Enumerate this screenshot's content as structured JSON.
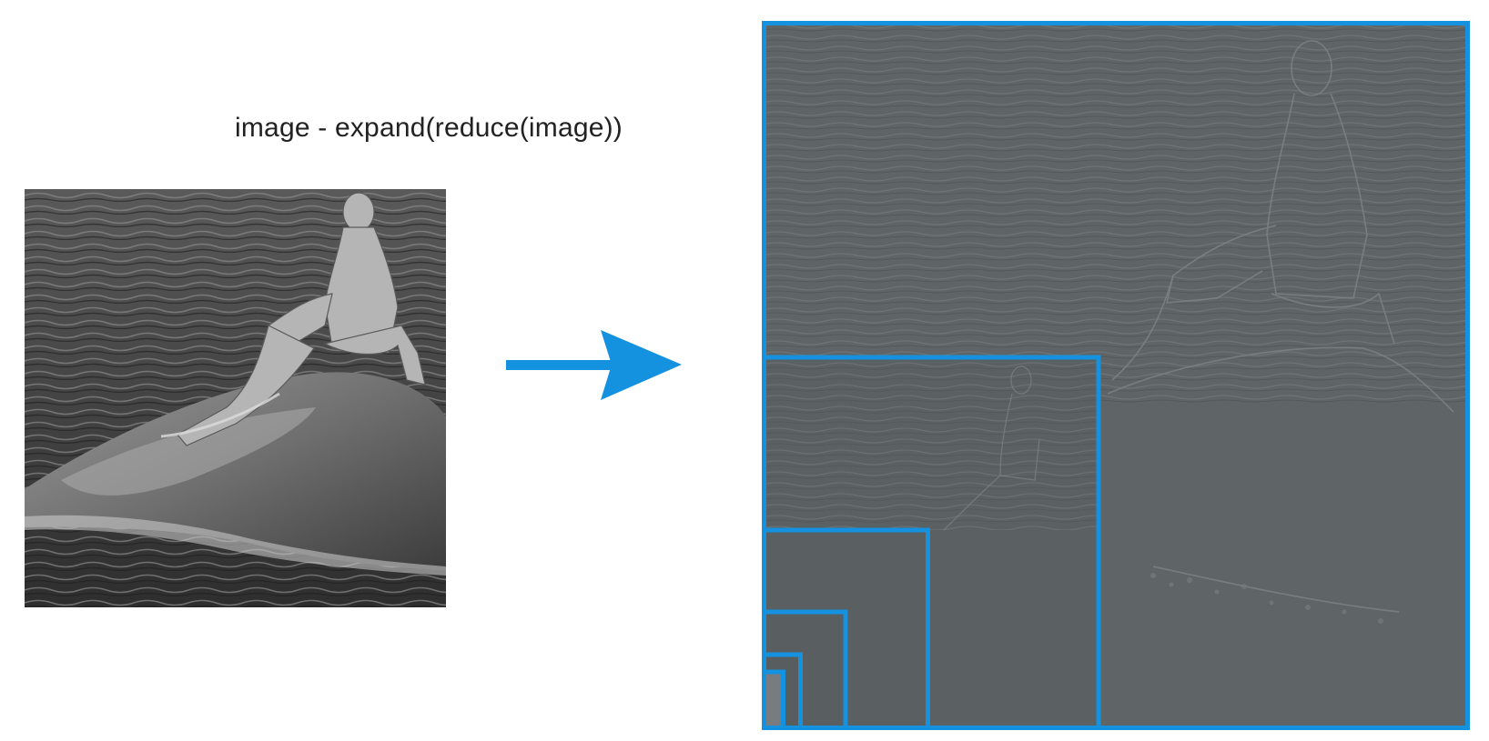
{
  "formula": "image - expand(reduce(image))",
  "colors": {
    "accent": "#1592df",
    "residual_gray": "#5d6265",
    "photo_water": "#3e3e3e",
    "photo_rock": "#6a6a6a",
    "statue": "#b8b8b8"
  },
  "icons": {
    "arrow": "right-arrow-icon"
  },
  "pyramid": {
    "levels": 6
  }
}
